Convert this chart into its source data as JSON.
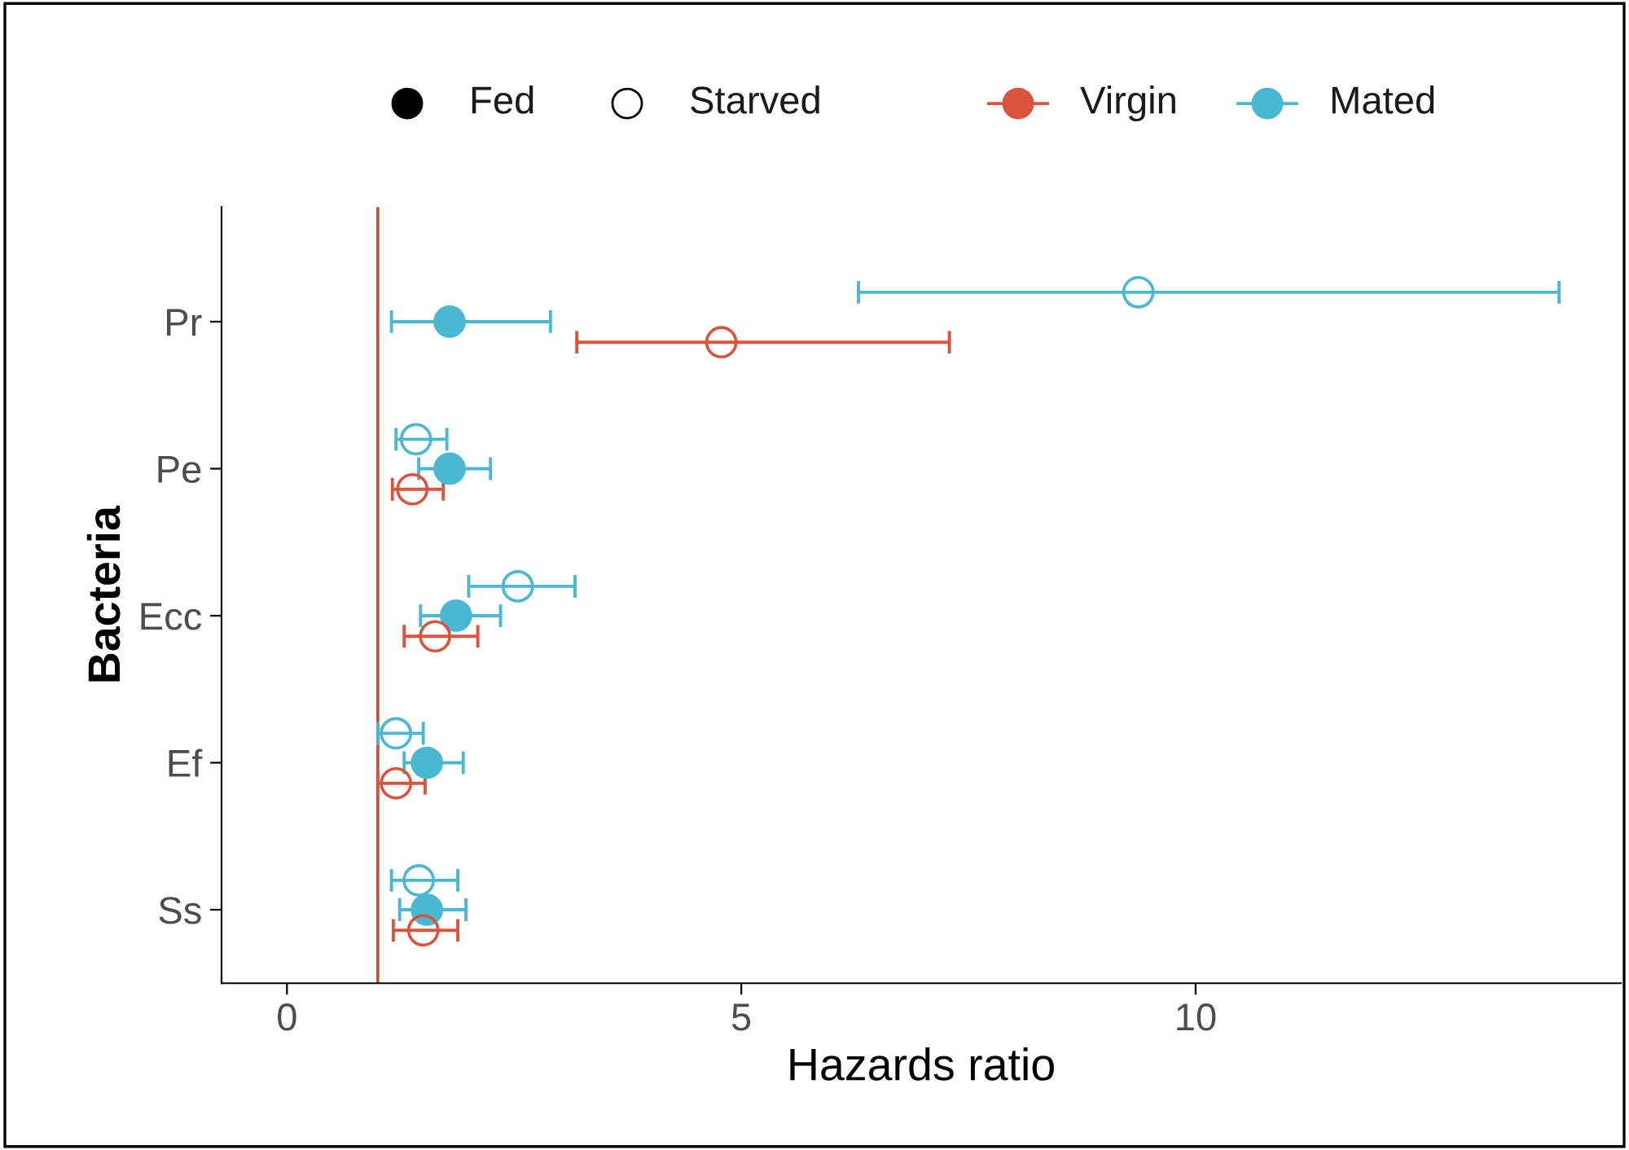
{
  "chart_data": {
    "type": "scatter",
    "orientation": "horizontal",
    "xlabel": "Hazards ratio",
    "ylabel": "Bacteria",
    "categories": [
      "Pr",
      "Pe",
      "Ecc",
      "Ef",
      "Ss"
    ],
    "xlim": [
      -0.72,
      14.68
    ],
    "xticks": [
      0,
      5,
      10
    ],
    "marker": "circle",
    "series": [
      {
        "color": "#4ab8d2",
        "values": [
          9.37,
          1.42,
          2.54,
          1.2,
          1.45
        ],
        "errors": [
          [
            6.29,
            14.0
          ],
          [
            1.2,
            1.76
          ],
          [
            2.0,
            3.17
          ],
          [
            1.0,
            1.5
          ],
          [
            1.15,
            1.88
          ]
        ]
      },
      {
        "color": "#4ab8d2",
        "values": [
          1.79,
          1.79,
          1.86,
          1.54,
          1.54
        ],
        "errors": [
          [
            1.15,
            2.9
          ],
          [
            1.45,
            2.24
          ],
          [
            1.47,
            2.35
          ],
          [
            1.29,
            1.94
          ],
          [
            1.24,
            1.97
          ]
        ]
      },
      {
        "color": "#d9533d",
        "values": [
          4.78,
          1.38,
          1.63,
          1.2,
          1.5
        ],
        "errors": [
          [
            3.19,
            7.29
          ],
          [
            1.16,
            1.72
          ],
          [
            1.29,
            2.1
          ],
          [
            1.0,
            1.52
          ],
          [
            1.17,
            1.88
          ]
        ]
      }
    ],
    "annotations": [
      "Fed",
      "Starved",
      "Virgin",
      "Mated"
    ],
    "ref_lines": [
      {
        "axis": "x",
        "value": 1,
        "color": "#c0503a",
        "line_style": "solid"
      }
    ]
  }
}
